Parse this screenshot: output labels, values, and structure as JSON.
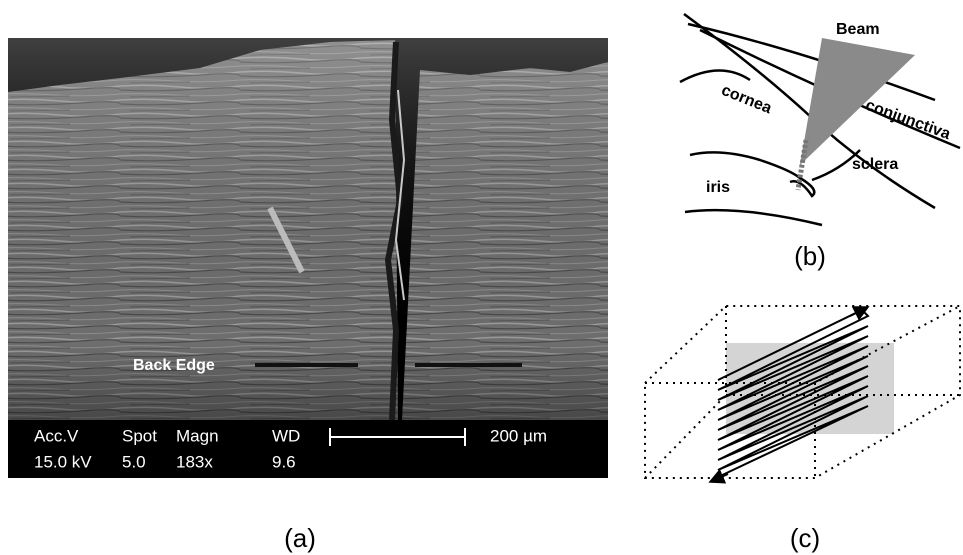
{
  "panel_a": {
    "label": "(a)",
    "annotation": "Back Edge",
    "info_bar": {
      "headers": [
        "Acc.V",
        "Spot",
        "Magn",
        "WD"
      ],
      "values": [
        "15.0 kV",
        "5.0",
        "183x",
        "9.6"
      ],
      "scale_bar": "200 µm"
    }
  },
  "panel_b": {
    "label": "(b)",
    "labels": {
      "beam": "Beam",
      "cornea": "cornea",
      "conjunctiva": "conjunctiva",
      "sclera": "sclera",
      "iris": "iris"
    }
  },
  "panel_c": {
    "label": "(c)"
  }
}
